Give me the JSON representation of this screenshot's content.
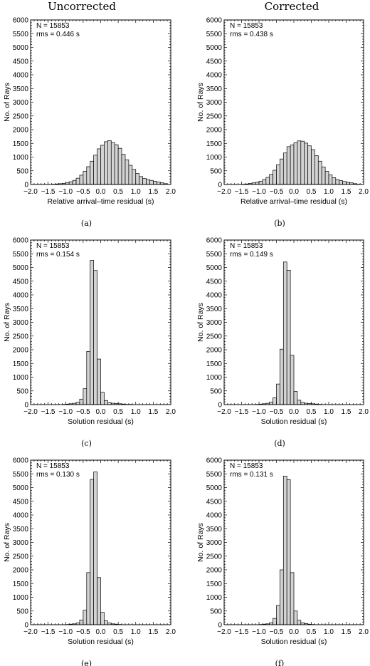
{
  "column_titles": [
    "Uncorrected",
    "Corrected"
  ],
  "colors": {
    "bar_fill": "#d3d3d3",
    "bar_stroke": "#000000"
  },
  "chart_data": [
    {
      "type": "bar",
      "panel_label": "(a)",
      "annotations": [
        "N = 15853",
        "rms = 0.446 s"
      ],
      "xlabel": "Relative arrival–time residual (s)",
      "ylabel": "No. of Rays",
      "xlim": [
        -2.0,
        2.0
      ],
      "ylim": [
        0,
        6000
      ],
      "bin_width": 0.1,
      "bin_start": -2.0,
      "values": [
        0,
        0,
        0,
        0,
        0,
        0,
        10,
        20,
        30,
        40,
        60,
        100,
        150,
        230,
        340,
        480,
        650,
        850,
        1070,
        1300,
        1430,
        1560,
        1600,
        1530,
        1450,
        1320,
        1100,
        900,
        700,
        550,
        400,
        290,
        220,
        180,
        150,
        120,
        90,
        60,
        30,
        0
      ]
    },
    {
      "type": "bar",
      "panel_label": "(b)",
      "annotations": [
        "N = 15853",
        "rms = 0.438 s"
      ],
      "xlabel": "Relative arrival–time residual (s)",
      "ylabel": "No. of Rays",
      "xlim": [
        -2.0,
        2.0
      ],
      "ylim": [
        0,
        6000
      ],
      "bin_width": 0.1,
      "bin_start": -2.0,
      "values": [
        0,
        0,
        0,
        0,
        0,
        10,
        20,
        40,
        60,
        80,
        120,
        180,
        260,
        370,
        520,
        720,
        930,
        1150,
        1380,
        1440,
        1520,
        1590,
        1580,
        1510,
        1410,
        1270,
        1050,
        850,
        640,
        480,
        350,
        250,
        180,
        140,
        110,
        80,
        60,
        30,
        10,
        0
      ]
    },
    {
      "type": "bar",
      "panel_label": "(c)",
      "annotations": [
        "N = 15853",
        "rms = 0.154 s"
      ],
      "xlabel": "Solution residual (s)",
      "ylabel": "No. of Rays",
      "xlim": [
        -2.0,
        2.0
      ],
      "ylim": [
        0,
        6000
      ],
      "bin_width": 0.1,
      "bin_start": -2.0,
      "values": [
        0,
        0,
        0,
        0,
        0,
        0,
        0,
        0,
        0,
        10,
        20,
        30,
        50,
        80,
        200,
        580,
        1940,
        5260,
        4890,
        1660,
        450,
        150,
        70,
        50,
        40,
        30,
        20,
        10,
        10,
        0,
        0,
        0,
        0,
        0,
        0,
        0,
        0,
        0,
        0,
        0
      ]
    },
    {
      "type": "bar",
      "panel_label": "(d)",
      "annotations": [
        "N = 15853",
        "rms = 0.149 s"
      ],
      "xlabel": "Solution residual (s)",
      "ylabel": "No. of Rays",
      "xlim": [
        -2.0,
        2.0
      ],
      "ylim": [
        0,
        6000
      ],
      "bin_width": 0.1,
      "bin_start": -2.0,
      "values": [
        0,
        0,
        0,
        0,
        0,
        0,
        0,
        0,
        0,
        10,
        20,
        30,
        50,
        90,
        250,
        750,
        2020,
        5200,
        4900,
        1800,
        480,
        160,
        80,
        50,
        40,
        30,
        20,
        10,
        0,
        0,
        0,
        0,
        0,
        0,
        0,
        0,
        0,
        0,
        0,
        0
      ]
    },
    {
      "type": "bar",
      "panel_label": "(e)",
      "annotations": [
        "N = 15853",
        "rms = 0.130 s"
      ],
      "xlabel": "Solution residual (s)",
      "ylabel": "No. of Rays",
      "xlim": [
        -2.0,
        2.0
      ],
      "ylim": [
        0,
        6000
      ],
      "bin_width": 0.1,
      "bin_start": -2.0,
      "values": [
        0,
        0,
        0,
        0,
        0,
        0,
        0,
        0,
        0,
        0,
        10,
        20,
        30,
        60,
        170,
        530,
        1900,
        5300,
        5570,
        1720,
        450,
        140,
        60,
        30,
        20,
        10,
        0,
        0,
        0,
        0,
        0,
        0,
        0,
        0,
        0,
        0,
        0,
        0,
        0,
        0
      ]
    },
    {
      "type": "bar",
      "panel_label": "(f)",
      "annotations": [
        "N = 15853",
        "rms = 0.131 s"
      ],
      "xlabel": "Solution residual (s)",
      "ylabel": "No. of Rays",
      "xlim": [
        -2.0,
        2.0
      ],
      "ylim": [
        0,
        6000
      ],
      "bin_width": 0.1,
      "bin_start": -2.0,
      "values": [
        0,
        0,
        0,
        0,
        0,
        0,
        0,
        0,
        0,
        0,
        10,
        20,
        30,
        70,
        230,
        700,
        2000,
        5420,
        5290,
        1900,
        500,
        160,
        70,
        40,
        20,
        10,
        0,
        0,
        0,
        0,
        0,
        0,
        0,
        0,
        0,
        0,
        0,
        0,
        0,
        0
      ]
    }
  ]
}
